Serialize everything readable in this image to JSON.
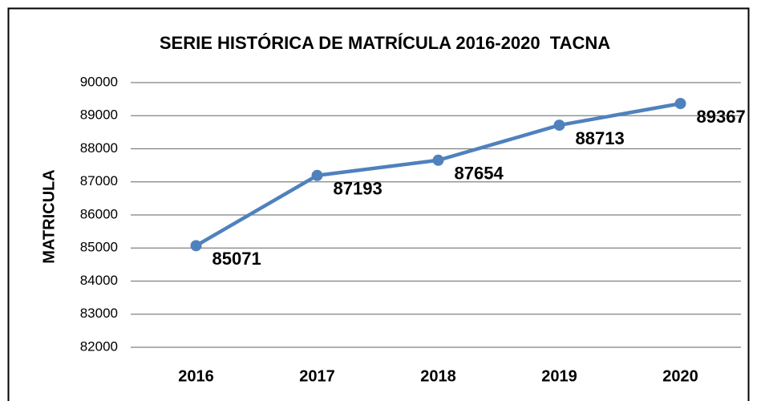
{
  "chart_data": {
    "type": "line",
    "title": "SERIE HISTÓRICA DE MATRÍCULA 2016-2020  TACNA",
    "y_label": "MATRICULA",
    "categories": [
      "2016",
      "2017",
      "2018",
      "2019",
      "2020"
    ],
    "values": [
      85071,
      87193,
      87654,
      88713,
      89367
    ],
    "color": "#4f81bd",
    "ylim": [
      82000,
      90000
    ],
    "yticks": [
      82000,
      83000,
      84000,
      85000,
      86000,
      87000,
      88000,
      89000,
      90000
    ],
    "grid": true
  }
}
